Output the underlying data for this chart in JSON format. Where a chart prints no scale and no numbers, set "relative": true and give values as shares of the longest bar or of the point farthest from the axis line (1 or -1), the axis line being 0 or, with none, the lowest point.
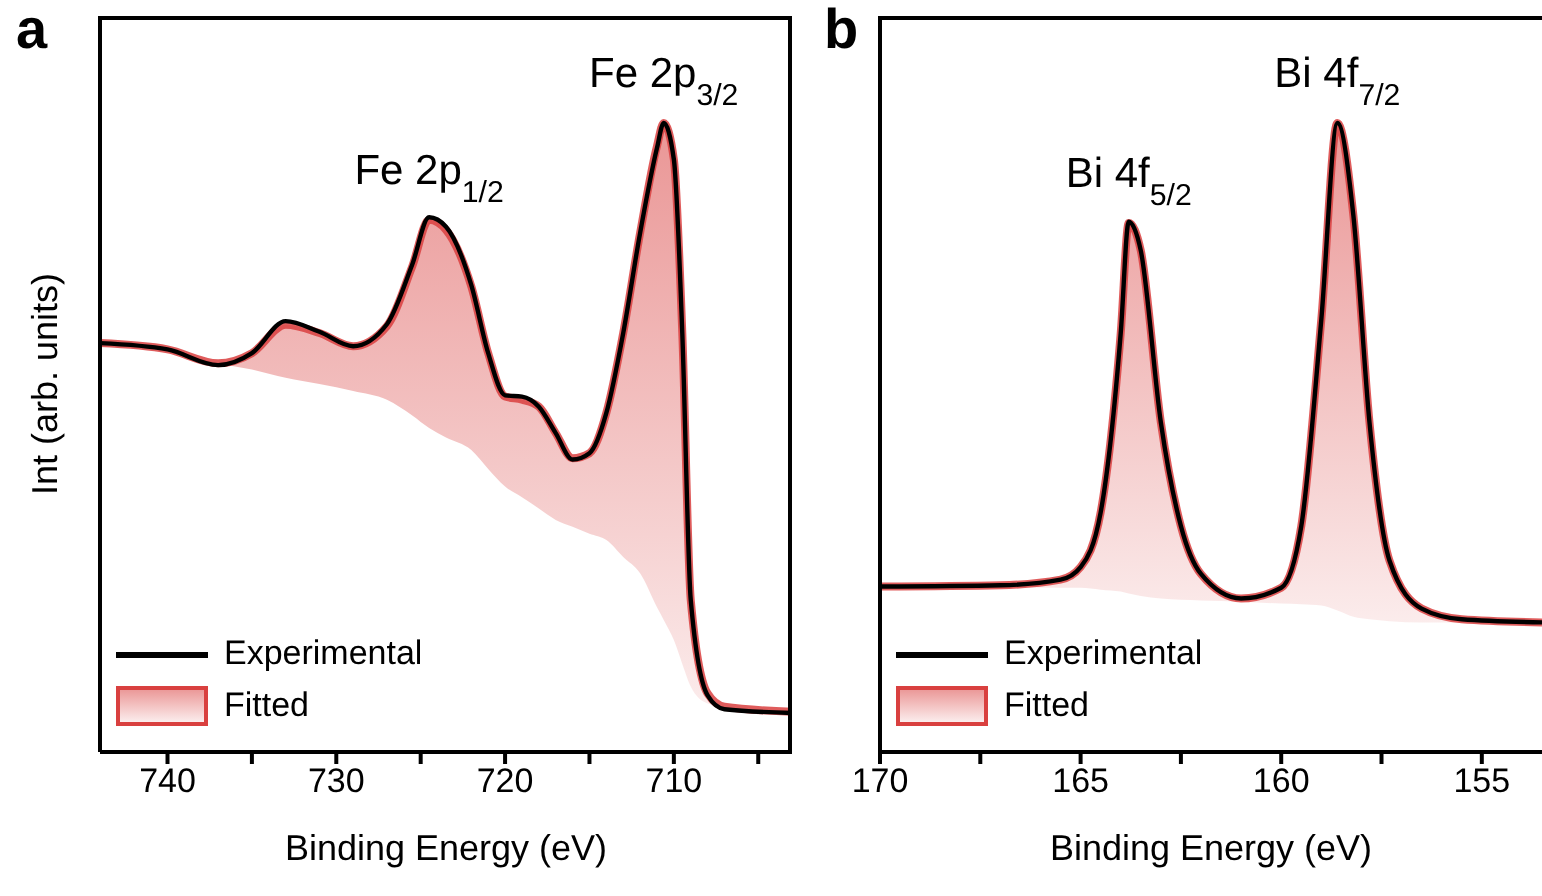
{
  "chart_data": [
    {
      "type": "line",
      "relative": true,
      "xlabel": "Binding Energy (eV)",
      "ylabel": "Int (arb. units)",
      "xlim": [
        744,
        703
      ],
      "xticks": [
        740,
        {
          "value": 735,
          "label": null
        },
        730,
        {
          "value": 725,
          "label": null
        },
        720,
        {
          "value": 715,
          "label": null
        },
        710,
        {
          "value": 705,
          "label": null
        }
      ],
      "tick_labels": "x",
      "grid": false,
      "legend": "bottom left",
      "marker": "none",
      "line_style": "solid",
      "annotations": [
        "a",
        {
          "text": "Fe 2p$_{1/2}$",
          "x": 724.5,
          "y": 0.846
        },
        {
          "text": "Fe 2p$_{3/2}$",
          "x": 710.6,
          "y": 1.0
        }
      ],
      "series": [
        {
          "name": "Experimental",
          "type": "line",
          "color": "#000000",
          "x": [
            744,
            740,
            737,
            735,
            733,
            731,
            729,
            727,
            725.5,
            724.5,
            723.5,
            722,
            721,
            720,
            719,
            718,
            717,
            716,
            715,
            714,
            713,
            712,
            711,
            710.6,
            710,
            709.5,
            709,
            708,
            707,
            703
          ],
          "values": [
            0.65,
            0.64,
            0.615,
            0.634,
            0.685,
            0.668,
            0.645,
            0.68,
            0.775,
            0.85,
            0.835,
            0.742,
            0.634,
            0.567,
            0.565,
            0.549,
            0.507,
            0.465,
            0.475,
            0.539,
            0.666,
            0.825,
            0.96,
            1.0,
            0.942,
            0.666,
            0.242,
            0.09,
            0.068,
            0.062
          ]
        },
        {
          "name": "Fitted",
          "type": "line",
          "color": "#d9403f",
          "x": [
            744,
            740,
            737,
            735,
            733,
            731,
            729,
            727,
            725.5,
            724.5,
            723.5,
            722,
            721,
            720,
            719,
            718,
            717,
            716,
            715,
            714,
            713,
            712,
            711,
            710.6,
            710,
            709.5,
            709,
            708,
            707,
            703
          ],
          "values": [
            0.65,
            0.64,
            0.618,
            0.634,
            0.679,
            0.666,
            0.645,
            0.677,
            0.772,
            0.846,
            0.83,
            0.74,
            0.634,
            0.565,
            0.56,
            0.549,
            0.507,
            0.467,
            0.475,
            0.539,
            0.666,
            0.825,
            0.963,
            1.0,
            0.942,
            0.666,
            0.242,
            0.093,
            0.072,
            0.064
          ],
          "upper": [
            0.65,
            0.64,
            0.618,
            0.634,
            0.679,
            0.666,
            0.645,
            0.677,
            0.772,
            0.846,
            0.83,
            0.74,
            0.634,
            0.565,
            0.56,
            0.549,
            0.507,
            0.467,
            0.475,
            0.539,
            0.666,
            0.825,
            0.963,
            1.0,
            0.942,
            0.666,
            0.242,
            0.093,
            0.072,
            0.064
          ],
          "lower": [
            0.65,
            0.64,
            0.618,
            0.608,
            0.595,
            0.585,
            0.574,
            0.56,
            0.535,
            0.515,
            0.5,
            0.48,
            0.45,
            0.422,
            0.405,
            0.387,
            0.369,
            0.358,
            0.347,
            0.337,
            0.31,
            0.284,
            0.23,
            0.21,
            0.178,
            0.14,
            0.104,
            0.077,
            0.072,
            0.064
          ]
        }
      ]
    },
    {
      "type": "line",
      "relative": true,
      "xlabel": "Binding Energy (eV)",
      "xlim": [
        170,
        153.5
      ],
      "xticks": [
        170,
        {
          "value": 167.5,
          "label": null
        },
        165,
        {
          "value": 162.5,
          "label": null
        },
        160,
        {
          "value": 157.5,
          "label": null
        },
        155
      ],
      "tick_labels": "x",
      "grid": false,
      "legend": "bottom left",
      "marker": "none",
      "line_style": "solid",
      "annotations": [
        "b",
        {
          "text": "Bi 4f$_{5/2}$",
          "x": 163.8,
          "y": 0.841
        },
        {
          "text": "Bi 4f$_{7/2}$",
          "x": 158.6,
          "y": 1.0
        }
      ],
      "series": [
        {
          "name": "Experimental",
          "type": "line",
          "color": "#000000",
          "x": [
            170,
            167,
            165.5,
            165,
            164.5,
            164,
            163.8,
            163.5,
            163,
            162.5,
            162,
            161,
            160,
            159.5,
            159,
            158.6,
            158.2,
            157.8,
            157.3,
            156.5,
            155.5,
            153.5
          ],
          "values": [
            0.263,
            0.265,
            0.274,
            0.294,
            0.381,
            0.666,
            0.843,
            0.797,
            0.524,
            0.359,
            0.283,
            0.244,
            0.261,
            0.359,
            0.688,
            1.0,
            0.852,
            0.524,
            0.304,
            0.228,
            0.211,
            0.206
          ]
        },
        {
          "name": "Fitted",
          "type": "line",
          "color": "#d9403f",
          "x": [
            170,
            167,
            165.5,
            165,
            164.5,
            164,
            163.8,
            163.5,
            163,
            162.5,
            162,
            161,
            160,
            159.5,
            159,
            158.6,
            158.2,
            157.8,
            157.3,
            156.5,
            155.5,
            153.5
          ],
          "values": [
            0.263,
            0.265,
            0.274,
            0.294,
            0.381,
            0.666,
            0.841,
            0.797,
            0.524,
            0.359,
            0.283,
            0.244,
            0.261,
            0.359,
            0.688,
            1.0,
            0.852,
            0.524,
            0.304,
            0.228,
            0.211,
            0.206
          ],
          "upper": [
            0.263,
            0.265,
            0.274,
            0.294,
            0.381,
            0.666,
            0.841,
            0.797,
            0.524,
            0.359,
            0.283,
            0.244,
            0.261,
            0.359,
            0.688,
            1.0,
            0.852,
            0.524,
            0.304,
            0.228,
            0.211,
            0.206
          ],
          "lower": [
            0.263,
            0.262,
            0.261,
            0.261,
            0.258,
            0.255,
            0.252,
            0.248,
            0.244,
            0.242,
            0.241,
            0.239,
            0.236,
            0.235,
            0.233,
            0.225,
            0.215,
            0.211,
            0.208,
            0.206,
            0.206,
            0.206
          ]
        }
      ]
    }
  ]
}
